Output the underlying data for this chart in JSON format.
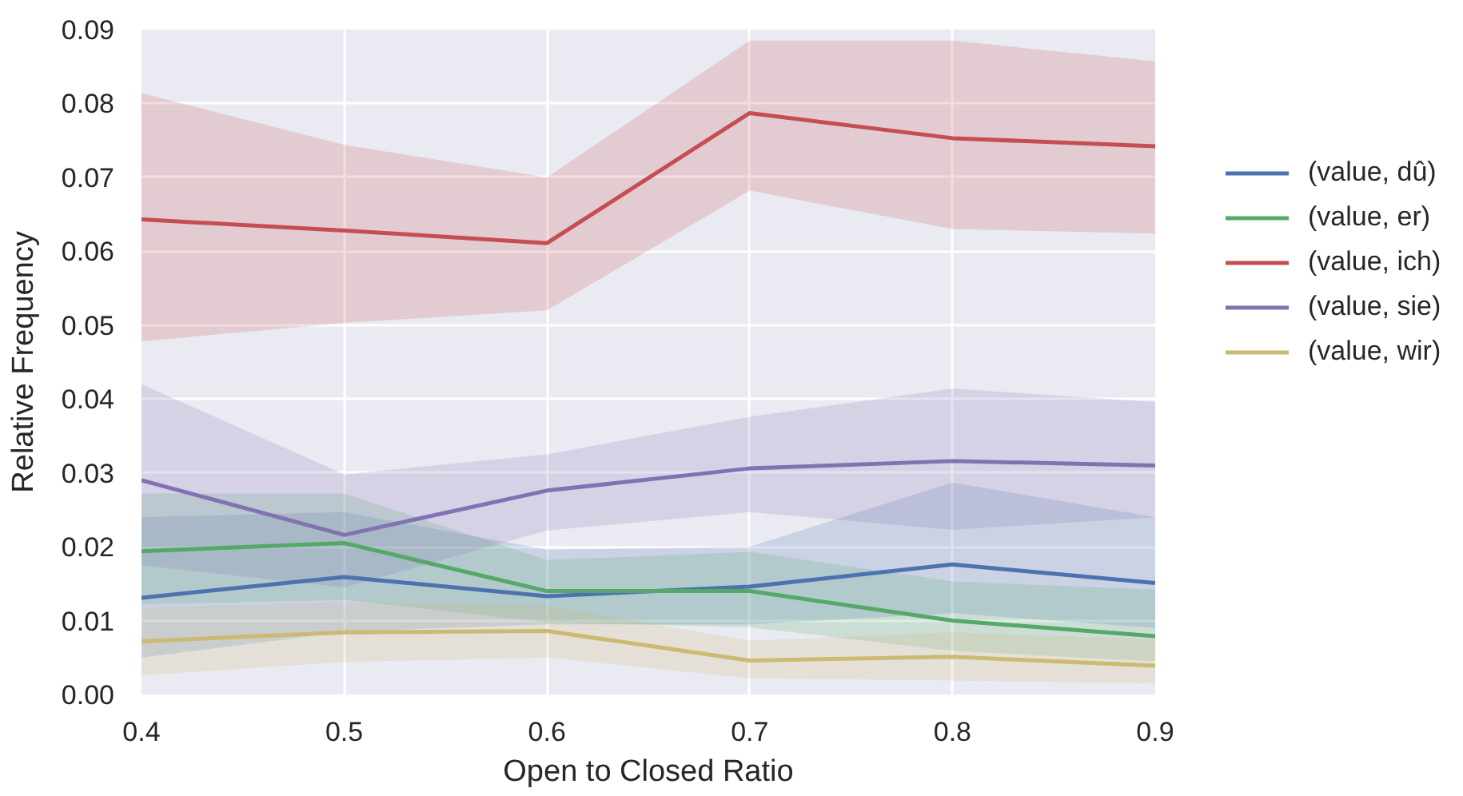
{
  "chart_data": {
    "type": "line",
    "xlabel": "Open to Closed Ratio",
    "ylabel": "Relative Frequency",
    "x": [
      0.4,
      0.5,
      0.6,
      0.7,
      0.8,
      0.9
    ],
    "xlim": [
      0.4,
      0.9
    ],
    "ylim": [
      0,
      0.09
    ],
    "xticks": [
      0.4,
      0.5,
      0.6,
      0.7,
      0.8,
      0.9
    ],
    "yticks": [
      {
        "value": 0,
        "label": "0.00"
      },
      0.01,
      0.02,
      0.03,
      0.04,
      0.05,
      0.06,
      0.07,
      0.08,
      0.09
    ],
    "grid": true,
    "legend": "right",
    "series": [
      {
        "name": "(value, dû)",
        "color": "#4c72b0",
        "values": [
          0.0131,
          0.0159,
          0.0133,
          0.0146,
          0.0176,
          0.0151
        ],
        "lower": [
          0.005,
          0.0085,
          0.0095,
          0.0095,
          0.011,
          0.009
        ],
        "upper": [
          0.024,
          0.0247,
          0.0196,
          0.02,
          0.0287,
          0.024
        ]
      },
      {
        "name": "(value, er)",
        "color": "#55a868",
        "values": [
          0.0194,
          0.0205,
          0.014,
          0.014,
          0.01,
          0.0079
        ],
        "lower": [
          0.0122,
          0.0128,
          0.0098,
          0.0091,
          0.0059,
          0.0045
        ],
        "upper": [
          0.0272,
          0.0272,
          0.0182,
          0.0193,
          0.0153,
          0.0142
        ]
      },
      {
        "name": "(value, ich)",
        "color": "#c44e52",
        "values": [
          0.0643,
          0.0628,
          0.0611,
          0.0787,
          0.0753,
          0.0742
        ],
        "lower": [
          0.0478,
          0.0503,
          0.052,
          0.0682,
          0.063,
          0.0624
        ],
        "upper": [
          0.0814,
          0.0744,
          0.07,
          0.0885,
          0.0885,
          0.0857
        ]
      },
      {
        "name": "(value, sie)",
        "color": "#8172b2",
        "values": [
          0.029,
          0.0216,
          0.0276,
          0.0306,
          0.0316,
          0.031
        ],
        "lower": [
          0.0175,
          0.0145,
          0.0222,
          0.0247,
          0.0223,
          0.024
        ],
        "upper": [
          0.042,
          0.0298,
          0.0325,
          0.0376,
          0.0414,
          0.0396
        ]
      },
      {
        "name": "(value, wir)",
        "color": "#ccb974",
        "values": [
          0.0072,
          0.0084,
          0.0086,
          0.0046,
          0.0051,
          0.0039
        ],
        "lower": [
          0.0026,
          0.0044,
          0.005,
          0.0022,
          0.0019,
          0.0015
        ],
        "upper": [
          0.0118,
          0.0125,
          0.012,
          0.0073,
          0.0084,
          0.0075
        ]
      }
    ]
  }
}
